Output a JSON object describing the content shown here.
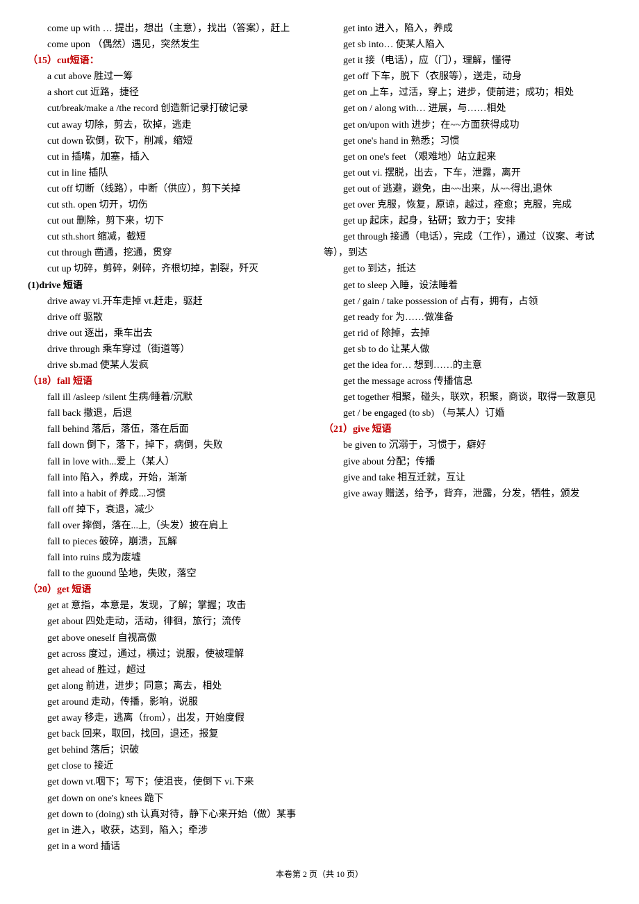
{
  "entries": [
    {
      "type": "entry",
      "text": "come up with … 提出，想出（主意），找出（答案），赶上"
    },
    {
      "type": "entry",
      "text": "come upon （偶然）遇见，突然发生"
    },
    {
      "type": "heading-red",
      "text": "（15）cut短语："
    },
    {
      "type": "entry",
      "text": "a cut above 胜过一筹"
    },
    {
      "type": "entry",
      "text": "a short cut 近路，捷径"
    },
    {
      "type": "entry",
      "text": "cut/break/make a /the record 创造新记录打破记录"
    },
    {
      "type": "entry",
      "text": "cut away 切除，剪去，砍掉，逃走"
    },
    {
      "type": "entry",
      "text": "cut down 砍倒，砍下，削减，缩短"
    },
    {
      "type": "entry",
      "text": "cut in 插嘴，加塞，插入"
    },
    {
      "type": "entry",
      "text": "cut in line 插队"
    },
    {
      "type": "entry",
      "text": "cut off 切断（线路），中断（供应），剪下关掉"
    },
    {
      "type": "entry",
      "text": "cut sth. open 切开，切伤"
    },
    {
      "type": "entry",
      "text": "cut out 删除，剪下来，切下"
    },
    {
      "type": "entry",
      "text": "cut sth.short 缩减，截短"
    },
    {
      "type": "entry",
      "text": "cut through 凿通，挖通，贯穿"
    },
    {
      "type": "entry",
      "text": "cut up 切碎，剪碎，剁碎，齐根切掉，割裂，歼灭"
    },
    {
      "type": "heading",
      "text": "(1)drive 短语"
    },
    {
      "type": "entry",
      "text": "drive away  vi.开车走掉 vt.赶走，驱赶"
    },
    {
      "type": "entry",
      "text": "drive off 驱散"
    },
    {
      "type": "entry",
      "text": "drive out 逐出，乘车出去"
    },
    {
      "type": "entry",
      "text": "drive through 乘车穿过（街道等）"
    },
    {
      "type": "entry",
      "text": "drive sb.mad 使某人发疯"
    },
    {
      "type": "heading-red",
      "text": "（18）fall 短语"
    },
    {
      "type": "entry",
      "text": "fall ill /asleep /silent 生病/睡着/沉默"
    },
    {
      "type": "entry",
      "text": "fall back 撤退，后退"
    },
    {
      "type": "entry",
      "text": "fall behind 落后，落伍，落在后面"
    },
    {
      "type": "entry",
      "text": "fall down 倒下，落下，掉下，病倒，失败"
    },
    {
      "type": "entry",
      "text": "fall in love with...爱上（某人）"
    },
    {
      "type": "entry",
      "text": "fall into 陷入，养成，开始，渐渐"
    },
    {
      "type": "entry",
      "text": "fall into a habit of 养成...习惯"
    },
    {
      "type": "entry",
      "text": "fall off 掉下，衰退，减少"
    },
    {
      "type": "entry",
      "text": "fall over 摔倒，落在...上,（头发）披在肩上"
    },
    {
      "type": "entry",
      "text": "fall to pieces 破碎，崩溃，瓦解"
    },
    {
      "type": "entry",
      "text": "fall into ruins 成为废墟"
    },
    {
      "type": "entry",
      "text": "fall to the guound 坠地，失败，落空"
    },
    {
      "type": "heading-red",
      "text": "（20）get 短语"
    },
    {
      "type": "entry",
      "text": "get at 意指，本意是，发现，了解；掌握；攻击"
    },
    {
      "type": "entry",
      "text": "get about  四处走动，活动，徘徊，旅行；流传"
    },
    {
      "type": "entry",
      "text": "get above oneself  自视高傲"
    },
    {
      "type": "entry",
      "text": "get across 度过，通过，横过；说服，使被理解"
    },
    {
      "type": "entry",
      "text": "get ahead of  胜过，超过"
    },
    {
      "type": "entry",
      "text": "get along  前进，进步；同意；离去，相处"
    },
    {
      "type": "entry",
      "text": "get around 走动，传播，影响，说服"
    },
    {
      "type": "entry",
      "text": "get away 移走，逃离（from），出发，开始度假"
    },
    {
      "type": "entry",
      "text": "get back 回来，取回，找回，退还，报复"
    },
    {
      "type": "entry",
      "text": "get behind  落后；识破"
    },
    {
      "type": "entry",
      "text": "get close to 接近"
    },
    {
      "type": "entry",
      "text": "get down vt.咽下；写下；使沮丧，使倒下 vi.下来"
    },
    {
      "type": "entry",
      "text": "get down on one's knees 跪下"
    },
    {
      "type": "entry",
      "text": "get down to (doing) sth 认真对待，静下心来开始（做）某事"
    },
    {
      "type": "entry",
      "text": "get in 进入，收获，达到，陷入；牵涉"
    },
    {
      "type": "entry",
      "text": "get in a word 插话"
    },
    {
      "type": "entry",
      "text": "get into 进入，陷入，养成"
    },
    {
      "type": "entry",
      "text": "get sb into… 使某人陷入"
    },
    {
      "type": "entry",
      "text": "get it 接（电话），应（门），理解，懂得"
    },
    {
      "type": "entry",
      "text": "get off 下车，脱下（衣服等），送走，动身"
    },
    {
      "type": "entry",
      "text": "get on 上车，过活，穿上；进步，使前进；成功；相处"
    },
    {
      "type": "entry",
      "text": "get on / along with… 进展，与……相处"
    },
    {
      "type": "entry",
      "text": "get on/upon with  进步；在~~方面获得成功"
    },
    {
      "type": "entry",
      "text": "get one's hand in  熟悉；习惯"
    },
    {
      "type": "entry",
      "text": "get on one's feet （艰难地）站立起来"
    },
    {
      "type": "entry",
      "text": "get out vi. 摆脱，出去，下车，泄露，离开"
    },
    {
      "type": "entry",
      "text": "get out of 逃避，避免，由~~出来，从~~得出,退休"
    },
    {
      "type": "entry",
      "text": "get over 克服，恢复，原谅，越过，痊愈；克服，完成"
    },
    {
      "type": "entry",
      "text": "get up 起床，起身，钻研；致力于；安排"
    },
    {
      "type": "entry",
      "text": "get through  接通（电话），完成（工作），通过（议案、考试等），到达"
    },
    {
      "type": "entry",
      "text": "get to 到达，抵达"
    },
    {
      "type": "entry",
      "text": "get to sleep 入睡，设法睡着"
    },
    {
      "type": "entry",
      "text": "get / gain / take possession of 占有，拥有，占领"
    },
    {
      "type": "entry",
      "text": "get ready for 为……做准备"
    },
    {
      "type": "entry",
      "text": "get rid of 除掉，去掉"
    },
    {
      "type": "entry",
      "text": "get sb to do 让某人做"
    },
    {
      "type": "entry",
      "text": "get the idea for… 想到……的主意"
    },
    {
      "type": "entry",
      "text": "get the message across 传播信息"
    },
    {
      "type": "entry",
      "text": "get together 相聚，碰头，联欢，积聚，商谈，取得一致意见"
    },
    {
      "type": "entry",
      "text": "get / be engaged (to sb) （与某人）订婚"
    },
    {
      "type": "heading-red",
      "text": "（21）give 短语"
    },
    {
      "type": "entry",
      "text": "  be given to  沉溺于，习惯于，癖好"
    },
    {
      "type": "entry",
      "text": "  give about  分配；传播"
    },
    {
      "type": "entry",
      "text": "  give and take  相互迁就，互让"
    },
    {
      "type": "entry",
      "text": "  give away 赠送，给予，背弃，泄露，分发，牺牲，颁发"
    }
  ],
  "footer": "本卷第 2 页（共 10 页）"
}
